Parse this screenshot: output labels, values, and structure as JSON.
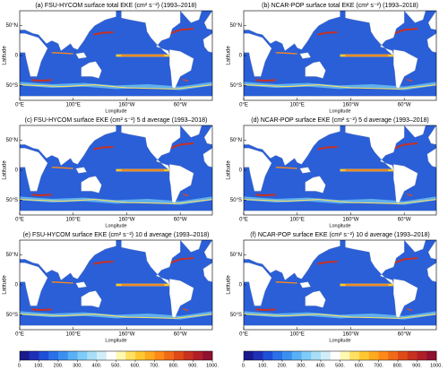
{
  "panels": [
    {
      "title": "(a) FSU-HYCOM surface total EKE (cm² s⁻²) (1993–2018)",
      "ylabel": "Latitude",
      "xlabel": "Longitude"
    },
    {
      "title": "(b) NCAR-POP surface total EKE (cm² s⁻²) (1993–2018)",
      "ylabel": "Latitude",
      "xlabel": "Longitude"
    },
    {
      "title": "(c) FSU-HYCOM surface EKE (cm² s⁻²) 5 d average (1993–2018)",
      "ylabel": "Latitude",
      "xlabel": "Longitude"
    },
    {
      "title": "(d) NCAR-POP surface EKE (cm² s⁻²) 5 d average (1993–2018)",
      "ylabel": "Latitude",
      "xlabel": "Longitude"
    },
    {
      "title": "(e) FSU-HYCOM surface EKE (cm² s⁻²) 10 d average (1993–2018)",
      "ylabel": "Latitude",
      "xlabel": "Longitude"
    },
    {
      "title": "(f) NCAR-POP surface EKE (cm² s⁻²) 10 d average (1993–2018)",
      "ylabel": "Latitude",
      "xlabel": "Longitude"
    }
  ],
  "axes": {
    "xticks": [
      "0°E",
      "100°E",
      "160°W",
      "60°W"
    ],
    "yticks": [
      "50°N",
      "0",
      "50°S"
    ]
  },
  "colorbar": {
    "colors": [
      "#1a1a8c",
      "#1f2fb8",
      "#1f4fd8",
      "#2a70e8",
      "#3a90f0",
      "#5ab0f5",
      "#7fcbf8",
      "#a8def8",
      "#d0eef8",
      "#ffffff",
      "#fff8b0",
      "#ffe060",
      "#ffc830",
      "#ffaa20",
      "#ff8a18",
      "#f06a18",
      "#e04a18",
      "#c83020",
      "#b01e28",
      "#901030"
    ],
    "ticks": [
      {
        "value": 0,
        "label": "0."
      },
      {
        "value": 100,
        "label": "100."
      },
      {
        "value": 200,
        "label": "200."
      },
      {
        "value": 300,
        "label": "300."
      },
      {
        "value": 400,
        "label": "400."
      },
      {
        "value": 500,
        "label": "500."
      },
      {
        "value": 600,
        "label": "600."
      },
      {
        "value": 700,
        "label": "700."
      },
      {
        "value": 800,
        "label": "800."
      },
      {
        "value": 900,
        "label": "900."
      },
      {
        "value": 1000,
        "label": "1000."
      }
    ],
    "range": [
      0,
      1000
    ]
  }
}
